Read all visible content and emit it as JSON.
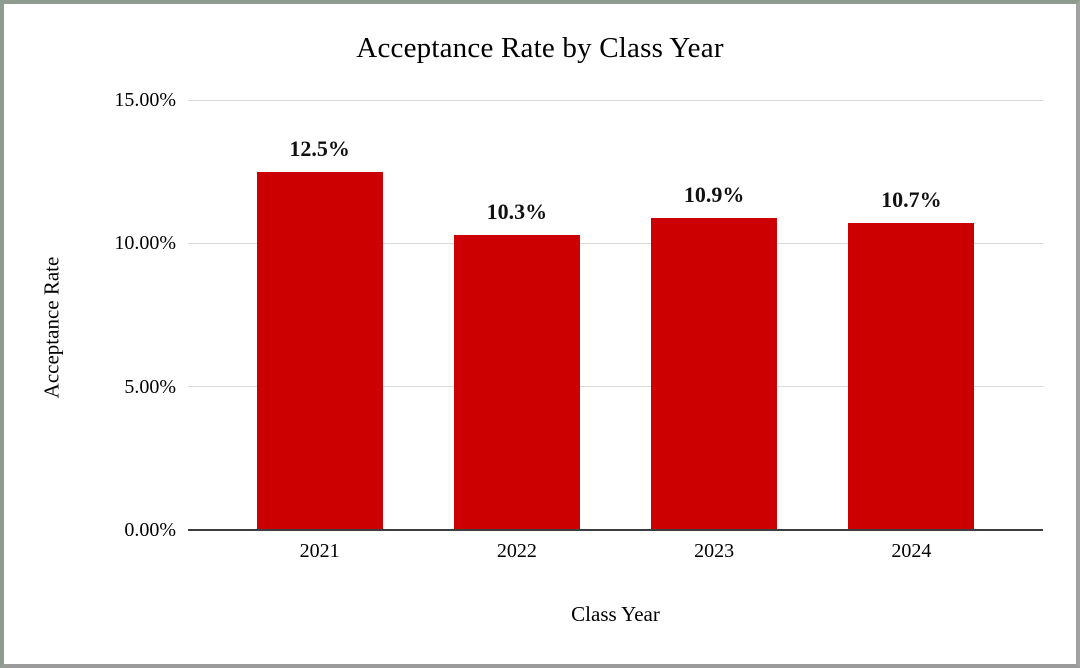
{
  "window": {
    "background": "#ffffff",
    "frame_border_color_top_left": "#8e9c8f",
    "frame_border_color_bottom_right": "#a2a2a2"
  },
  "chart_data": {
    "type": "bar",
    "title": "Acceptance Rate by Class Year",
    "xlabel": "Class Year",
    "ylabel": "Acceptance Rate",
    "categories": [
      "2021",
      "2022",
      "2023",
      "2024"
    ],
    "values": [
      12.5,
      10.3,
      10.9,
      10.7
    ],
    "data_labels": [
      "12.5%",
      "10.3%",
      "10.9%",
      "10.7%"
    ],
    "y_ticks": [
      {
        "value": 0,
        "label": "0.00%"
      },
      {
        "value": 5,
        "label": "5.00%"
      },
      {
        "value": 10,
        "label": "10.00%"
      },
      {
        "value": 15,
        "label": "15.00%"
      }
    ],
    "ylim": [
      0,
      15
    ],
    "grid": true,
    "legend_position": "none",
    "bar_color": "#cc0000",
    "gridline_color": "#d9d9d9",
    "axis_line_color": "#3d3d3d",
    "text_color": "#000000"
  }
}
